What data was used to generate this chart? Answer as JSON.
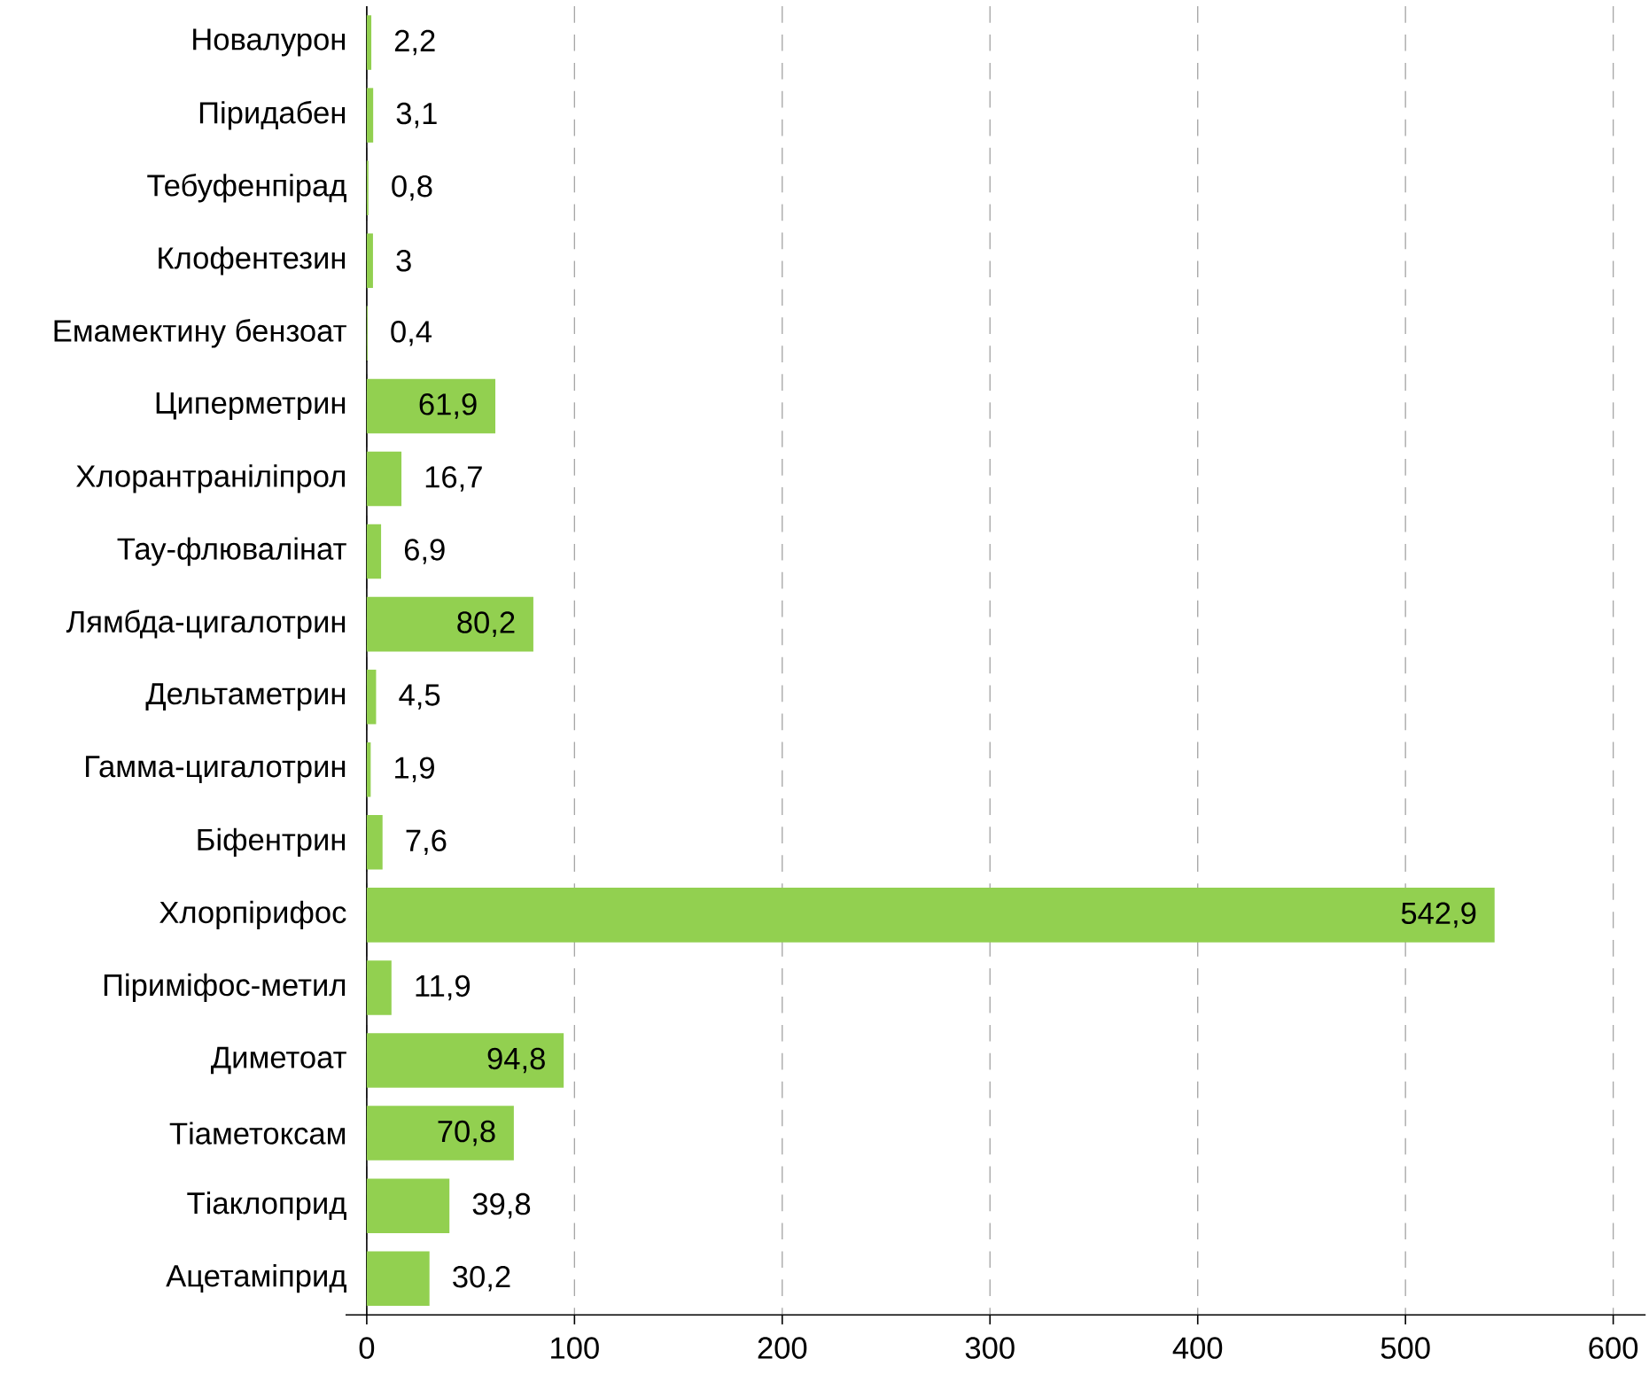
{
  "chart_data": {
    "type": "bar",
    "orientation": "horizontal",
    "categories": [
      "Новалурон",
      "Піридабен",
      "Тебуфенпірад",
      "Клофентезин",
      "Емамектину бензоат",
      "Циперметрин",
      "Хлорантраніліпрол",
      "Тау-флювалінат",
      "Лямбда-цигалотрин",
      "Дельтаметрин",
      "Гамма-цигалотрин",
      "Біфентрин",
      "Хлорпірифос",
      "Піриміфос-метил",
      "Диметоат",
      "Тіаметоксам",
      "Тіаклоприд",
      "Ацетаміприд"
    ],
    "values": [
      2.2,
      3.1,
      0.8,
      3,
      0.4,
      61.9,
      16.7,
      6.9,
      80.2,
      4.5,
      1.9,
      7.6,
      542.9,
      11.9,
      94.8,
      70.8,
      39.8,
      30.2
    ],
    "value_labels": [
      "2,2",
      "3,1",
      "0,8",
      "3",
      "0,4",
      "61,9",
      "16,7",
      "6,9",
      "80,2",
      "4,5",
      "1,9",
      "7,6",
      "542,9",
      "11,9",
      "94,8",
      "70,8",
      "39,8",
      "30,2"
    ],
    "color": "#92d050",
    "xlim": [
      0,
      600
    ],
    "xticks": [
      0,
      100,
      200,
      300,
      400,
      500,
      600
    ],
    "grid": "x"
  }
}
